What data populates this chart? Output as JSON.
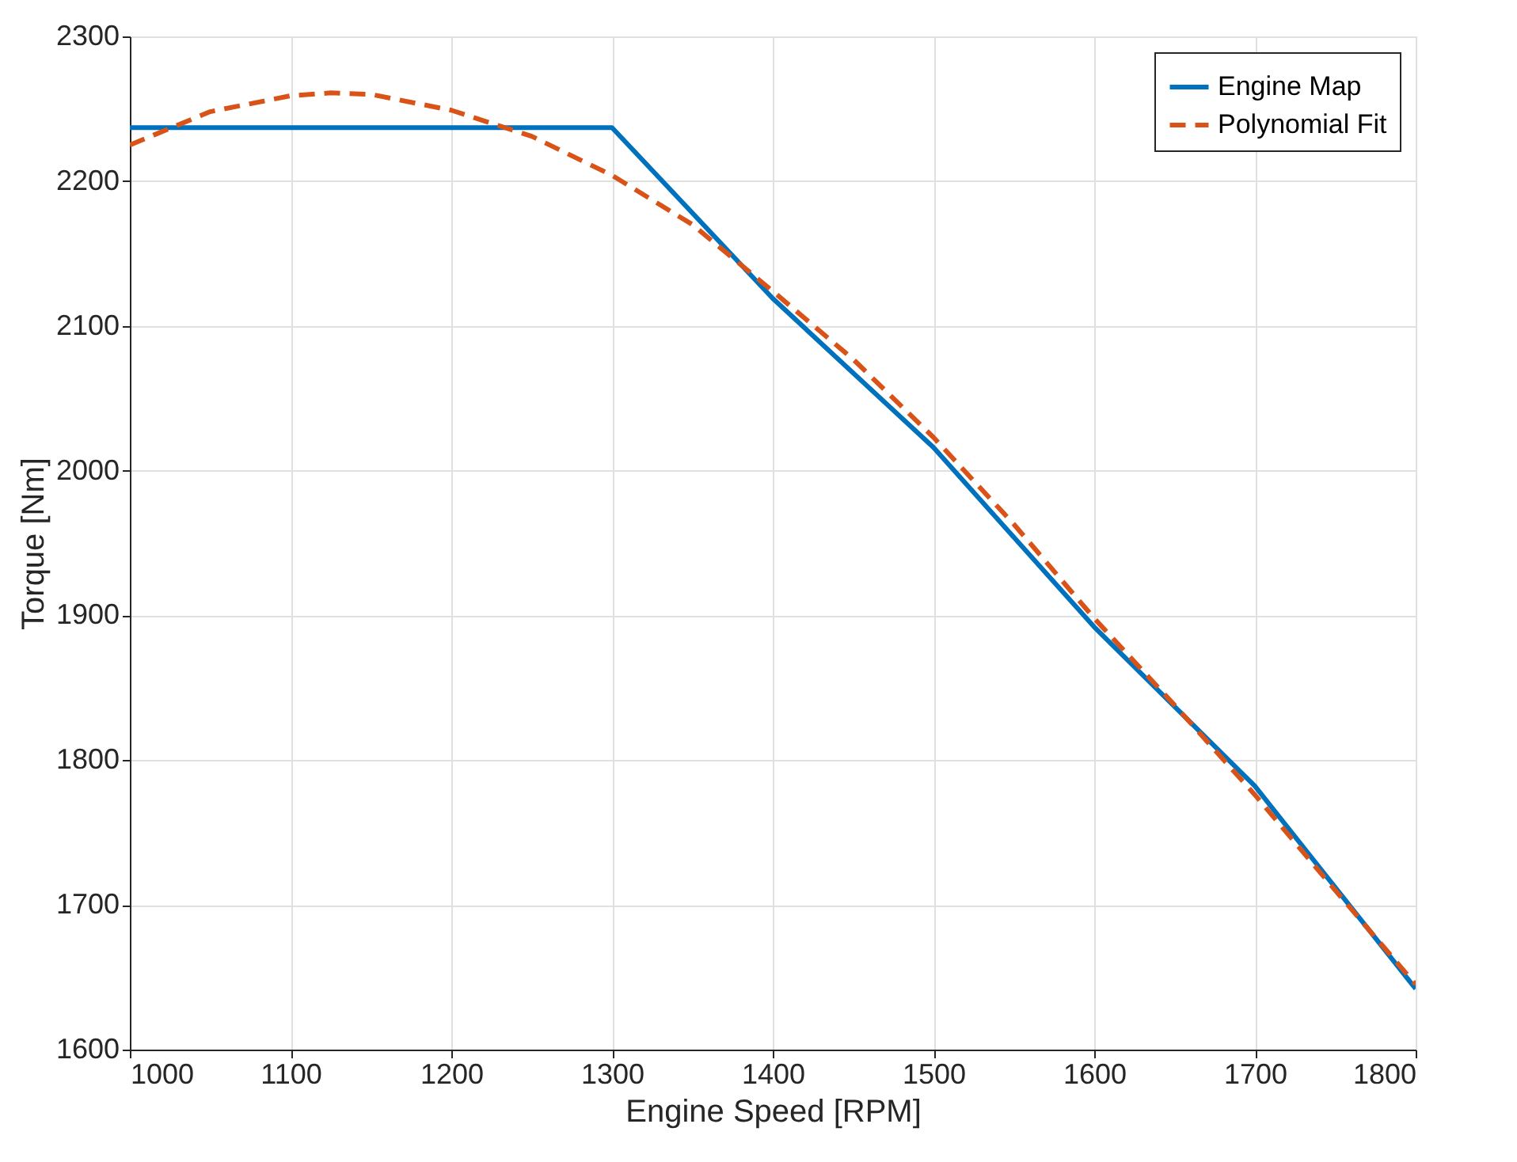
{
  "chart_data": {
    "type": "line",
    "xlabel": "Engine Speed [RPM]",
    "ylabel": "Torque [Nm]",
    "xlim": [
      1000,
      1800
    ],
    "xticks": [
      1000,
      1100,
      1200,
      1300,
      1400,
      1500,
      1600,
      1700,
      1800
    ],
    "ylim": [
      1600,
      2300
    ],
    "yticks": [
      1600,
      1700,
      1800,
      1900,
      2000,
      2100,
      2200,
      2300
    ],
    "grid": true,
    "legend": "top right",
    "series": [
      {
        "name": "Engine Map",
        "color": "#0072bd",
        "line_style": "solid",
        "x": [
          1000,
          1300,
          1400,
          1500,
          1600,
          1700,
          1800
        ],
        "values": [
          2237,
          2237,
          2119,
          2016,
          1892,
          1782,
          1642
        ]
      },
      {
        "name": "Polynomial Fit",
        "color": "#d95319",
        "line_style": "dashed",
        "x": [
          1000,
          1050,
          1100,
          1125,
          1150,
          1200,
          1250,
          1300,
          1350,
          1400,
          1450,
          1500,
          1550,
          1600,
          1650,
          1700,
          1750,
          1800
        ],
        "values": [
          2225,
          2248,
          2259,
          2261,
          2260,
          2249,
          2231,
          2204,
          2170,
          2124,
          2077,
          2023,
          1963,
          1898,
          1838,
          1776,
          1710,
          1645
        ]
      }
    ]
  }
}
